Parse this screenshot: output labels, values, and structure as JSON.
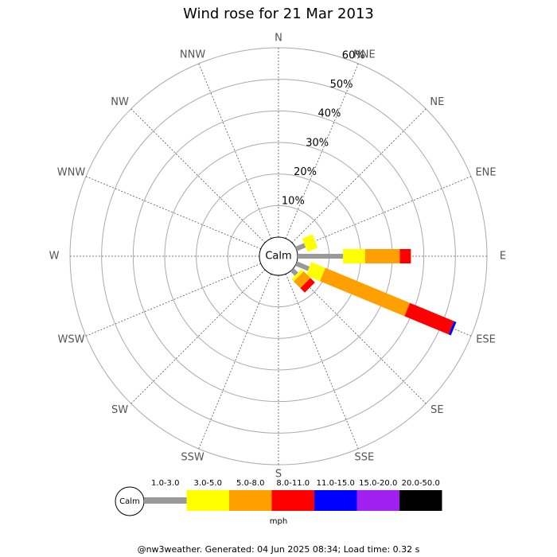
{
  "chart_data": {
    "type": "windrose",
    "title": "Wind rose for 21 Mar 2013",
    "calm_label": "Calm",
    "unit": "mph",
    "footer": "@nw3weather. Generated: 04 Jun 2025 08:34; Load time: 0.32 s",
    "categories": [
      "N",
      "NNE",
      "NE",
      "ENE",
      "E",
      "ESE",
      "SE",
      "SSE",
      "S",
      "SSW",
      "SW",
      "WSW",
      "W",
      "WNW",
      "NW",
      "NNW"
    ],
    "series": [
      {
        "name": "1.0-3.0",
        "color": "#999999",
        "values": [
          0,
          0,
          0,
          3,
          14.4,
          4.3,
          2,
          0,
          0,
          0,
          0,
          0,
          0,
          0,
          0,
          0
        ]
      },
      {
        "name": "3.0-5.0",
        "color": "#ffff00",
        "values": [
          0,
          0,
          0,
          3.5,
          7,
          4.8,
          1,
          0,
          0,
          0,
          0,
          0,
          0,
          0,
          0,
          0
        ]
      },
      {
        "name": "5.0-8.0",
        "color": "#ffa000",
        "values": [
          0,
          0,
          0,
          0,
          11,
          29,
          3,
          0,
          0,
          0,
          0,
          0,
          0,
          0,
          0,
          0
        ]
      },
      {
        "name": "8.0-11.0",
        "color": "#ff0000",
        "values": [
          0,
          0,
          0,
          0,
          3.5,
          15.1,
          2,
          0,
          0,
          0,
          0,
          0,
          0,
          0,
          0,
          0
        ]
      },
      {
        "name": "11.0-15.0",
        "color": "#0000ff",
        "values": [
          0,
          0,
          0,
          0,
          0,
          0.8,
          0,
          0,
          0,
          0,
          0,
          0,
          0,
          0,
          0,
          0
        ]
      },
      {
        "name": "15.0-20.0",
        "color": "#a020f0",
        "values": [
          0,
          0,
          0,
          0,
          0,
          0,
          0,
          0,
          0,
          0,
          0,
          0,
          0,
          0,
          0,
          0
        ]
      },
      {
        "name": "20.0-50.0",
        "color": "#000000",
        "values": [
          0,
          0,
          0,
          0,
          0,
          0,
          0,
          0,
          0,
          0,
          0,
          0,
          0,
          0,
          0,
          0
        ]
      }
    ],
    "ylim": [
      0,
      60
    ],
    "yticks": [
      {
        "value": 10,
        "label": "10%"
      },
      {
        "value": 20,
        "label": "20%"
      },
      {
        "value": 30,
        "label": "30%"
      },
      {
        "value": 40,
        "label": "40%"
      },
      {
        "value": 50,
        "label": "50%"
      },
      {
        "value": 60,
        "label": "60%"
      }
    ]
  }
}
